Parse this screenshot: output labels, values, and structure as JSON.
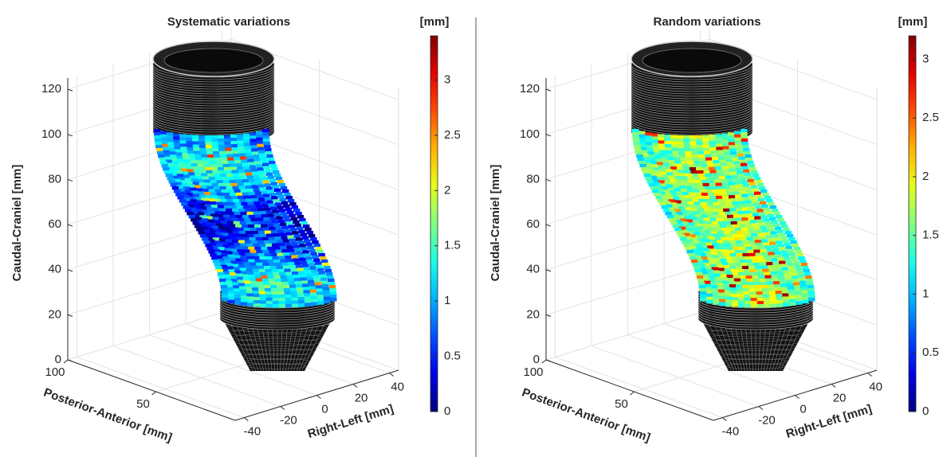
{
  "chart_data": [
    {
      "type": "surface3d",
      "title": "Systematic variations",
      "xlabel": "Posterior-Anterior [mm]",
      "ylabel": "Right-Left [mm]",
      "zlabel": "Caudal-Craniel [mm]",
      "xlim": [
        5,
        100
      ],
      "xticks": [
        50,
        100
      ],
      "ylim": [
        -45,
        45
      ],
      "yticks": [
        -40,
        -20,
        0,
        20,
        40
      ],
      "zlim": [
        0,
        125
      ],
      "zticks": [
        0,
        20,
        40,
        60,
        80,
        100,
        120
      ],
      "grid": true,
      "colormap": "jet",
      "colorbar_label": "[mm]",
      "clim": [
        0,
        3.4
      ],
      "cticks": [
        0,
        0.5,
        1,
        1.5,
        2,
        2.5,
        3
      ]
    },
    {
      "type": "surface3d",
      "title": "Random variations",
      "xlabel": "Posterior-Anterior [mm]",
      "ylabel": "Right-Left [mm]",
      "zlabel": "Caudal-Craniel [mm]",
      "xlim": [
        5,
        100
      ],
      "xticks": [
        50,
        100
      ],
      "ylim": [
        -45,
        45
      ],
      "yticks": [
        -40,
        -20,
        0,
        20,
        40
      ],
      "zlim": [
        0,
        125
      ],
      "zticks": [
        0,
        20,
        40,
        60,
        80,
        100,
        120
      ],
      "grid": true,
      "colormap": "jet",
      "colorbar_label": "[mm]",
      "clim": [
        0,
        3.2
      ],
      "cticks": [
        0,
        0.5,
        1,
        1.5,
        2,
        2.5,
        3
      ]
    }
  ]
}
